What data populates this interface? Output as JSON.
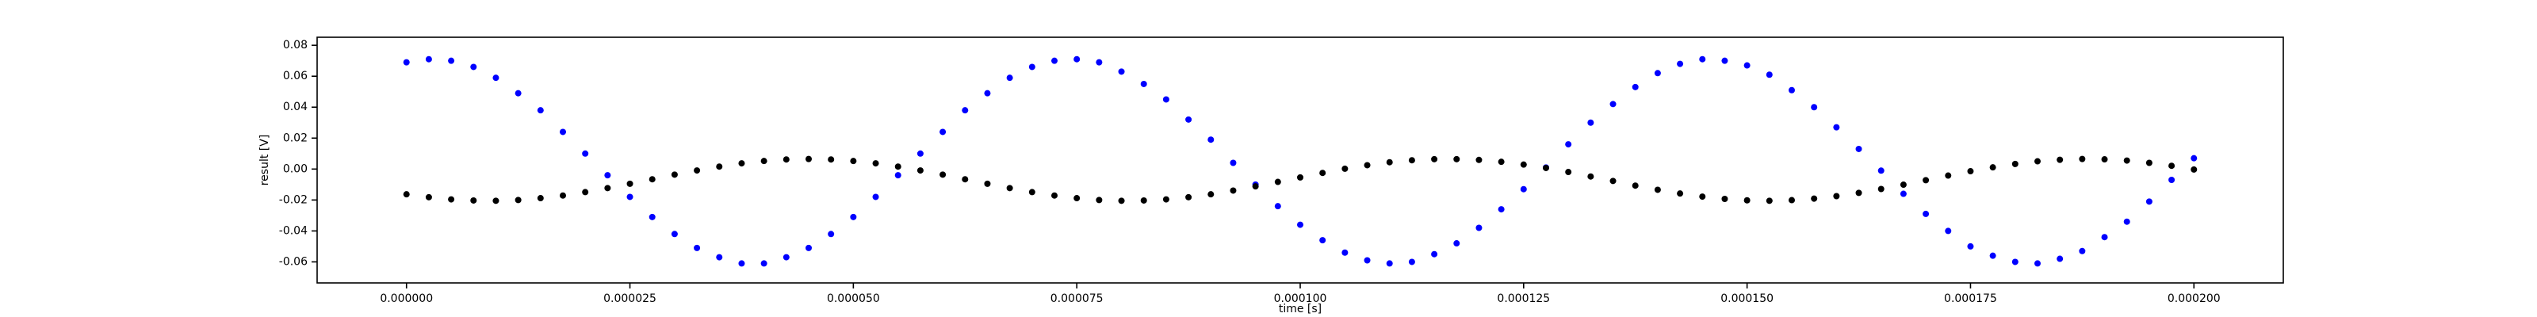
{
  "chart_data": {
    "type": "scatter",
    "x_label": "time [s]",
    "y_label": "result [V]",
    "x": [
      0,
      2.5e-06,
      5e-06,
      7.5e-06,
      1e-05,
      1.25e-05,
      1.5e-05,
      1.75e-05,
      2e-05,
      2.25e-05,
      2.5e-05,
      2.75e-05,
      3e-05,
      3.25e-05,
      3.5e-05,
      3.75e-05,
      4e-05,
      4.25e-05,
      4.5e-05,
      4.75e-05,
      5e-05,
      5.25e-05,
      5.5e-05,
      5.75e-05,
      6e-05,
      6.25e-05,
      6.5e-05,
      6.75e-05,
      7e-05,
      7.25e-05,
      7.5e-05,
      7.75e-05,
      8e-05,
      8.25e-05,
      8.5e-05,
      8.75e-05,
      9e-05,
      9.25e-05,
      9.5e-05,
      9.75e-05,
      0.0001,
      0.0001025,
      0.000105,
      0.0001075,
      0.00011,
      0.0001125,
      0.000115,
      0.0001175,
      0.00012,
      0.0001225,
      0.000125,
      0.0001275,
      0.00013,
      0.0001325,
      0.000135,
      0.0001375,
      0.00014,
      0.0001425,
      0.000145,
      0.0001475,
      0.00015,
      0.0001525,
      0.000155,
      0.0001575,
      0.00016,
      0.0001625,
      0.000165,
      0.0001675,
      0.00017,
      0.0001725,
      0.000175,
      0.0001775,
      0.00018,
      0.0001825,
      0.000185,
      0.0001875,
      0.00019,
      0.0001925,
      0.000195,
      0.0001975,
      0.0002
    ],
    "series": [
      {
        "color": "#0000ff",
        "values": [
          0.069,
          0.071,
          0.07,
          0.066,
          0.059,
          0.049,
          0.038,
          0.024,
          0.01,
          -0.004,
          -0.018,
          -0.031,
          -0.042,
          -0.051,
          -0.057,
          -0.061,
          -0.061,
          -0.057,
          -0.051,
          -0.042,
          -0.031,
          -0.018,
          -0.004,
          0.01,
          0.024,
          0.038,
          0.049,
          0.059,
          0.066,
          0.07,
          0.071,
          0.069,
          0.063,
          0.055,
          0.045,
          0.032,
          0.019,
          0.004,
          -0.01,
          -0.024,
          -0.036,
          -0.046,
          -0.054,
          -0.059,
          -0.061,
          -0.06,
          -0.055,
          -0.048,
          -0.038,
          -0.026,
          -0.013,
          0.001,
          0.016,
          0.03,
          0.042,
          0.053,
          0.062,
          0.068,
          0.071,
          0.07,
          0.067,
          0.061,
          0.051,
          0.04,
          0.027,
          0.013,
          -0.001,
          -0.016,
          -0.029,
          -0.04,
          -0.05,
          -0.056,
          -0.06,
          -0.061,
          -0.058,
          -0.053,
          -0.044,
          -0.034,
          -0.021,
          -0.007,
          0.007
        ]
      },
      {
        "color": "#000000",
        "values": [
          -0.0163,
          -0.0182,
          -0.0196,
          -0.0203,
          -0.0205,
          -0.02,
          -0.0188,
          -0.0171,
          -0.0149,
          -0.0123,
          -0.0095,
          -0.0066,
          -0.0036,
          -0.0009,
          0.0016,
          0.0037,
          0.0052,
          0.0062,
          0.0065,
          0.0062,
          0.0052,
          0.0037,
          0.0016,
          -0.0009,
          -0.0036,
          -0.0066,
          -0.0095,
          -0.0123,
          -0.0149,
          -0.0171,
          -0.0188,
          -0.02,
          -0.0205,
          -0.0203,
          -0.0196,
          -0.0182,
          -0.0163,
          -0.0139,
          -0.0112,
          -0.0083,
          -0.0054,
          -0.0025,
          0.0002,
          0.0025,
          0.0044,
          0.0057,
          0.0064,
          0.0064,
          0.0059,
          0.0047,
          0.0029,
          0.0007,
          -0.0019,
          -0.0048,
          -0.0077,
          -0.0107,
          -0.0134,
          -0.0158,
          -0.0178,
          -0.0193,
          -0.0202,
          -0.0205,
          -0.0201,
          -0.0191,
          -0.0175,
          -0.0154,
          -0.0129,
          -0.0101,
          -0.0072,
          -0.0042,
          -0.0014,
          0.0011,
          0.0033,
          0.005,
          0.006,
          0.0065,
          0.0063,
          0.0055,
          0.004,
          0.0021,
          -0.0003
        ]
      }
    ],
    "xlim": [
      -1e-05,
      0.00021
    ],
    "xticks": [
      {
        "value": 0,
        "label": "0.000000"
      },
      {
        "value": 2.5e-05,
        "label": "0.000025"
      },
      {
        "value": 5e-05,
        "label": "0.000050"
      },
      {
        "value": 7.5e-05,
        "label": "0.000075"
      },
      {
        "value": 0.0001,
        "label": "0.000100"
      },
      {
        "value": 0.000125,
        "label": "0.000125"
      },
      {
        "value": 0.00015,
        "label": "0.000150"
      },
      {
        "value": 0.000175,
        "label": "0.000175"
      },
      {
        "value": 0.0002,
        "label": "0.000200"
      }
    ],
    "ylim": [
      -0.0736,
      0.0852
    ],
    "yticks": [
      {
        "value": -0.06,
        "label": "-0.06"
      },
      {
        "value": -0.04,
        "label": "-0.04"
      },
      {
        "value": -0.02,
        "label": "-0.02"
      },
      {
        "value": 0,
        "label": "0.00"
      },
      {
        "value": 0.02,
        "label": "0.02"
      },
      {
        "value": 0.04,
        "label": "0.04"
      },
      {
        "value": 0.06,
        "label": "0.06"
      },
      {
        "value": 0.08,
        "label": "0.08"
      }
    ],
    "grid": false
  }
}
